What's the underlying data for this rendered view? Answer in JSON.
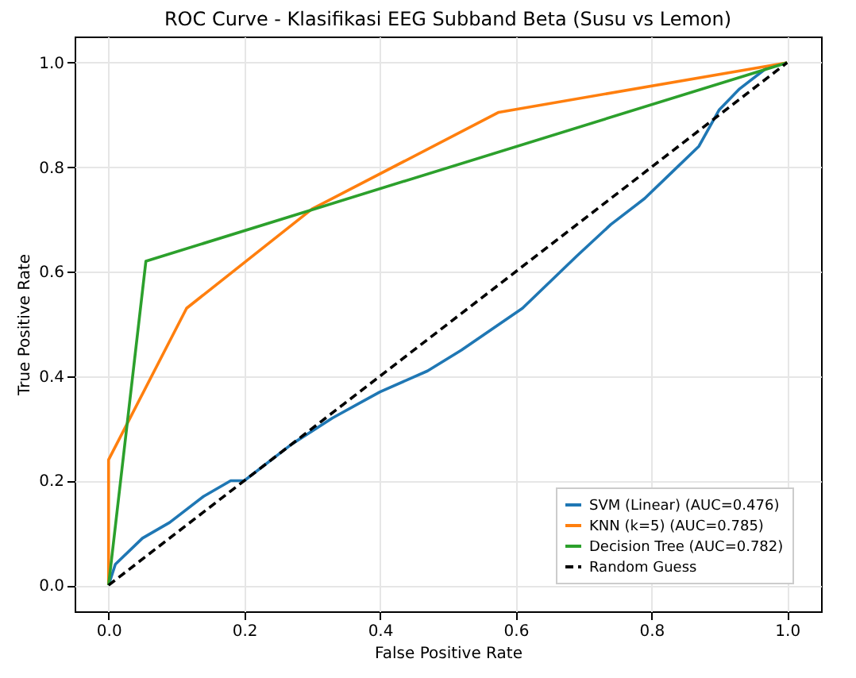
{
  "chart_data": {
    "type": "line",
    "title": "ROC Curve - Klasifikasi EEG Subband Beta (Susu vs Lemon)",
    "xlabel": "False Positive Rate",
    "ylabel": "True Positive Rate",
    "xlim": [
      -0.05,
      1.05
    ],
    "ylim": [
      -0.05,
      1.05
    ],
    "xticks": [
      {
        "value": 0,
        "label": "0.0"
      },
      {
        "value": 0.2,
        "label": "0.2"
      },
      {
        "value": 0.4,
        "label": "0.4"
      },
      {
        "value": 0.6,
        "label": "0.6"
      },
      {
        "value": 0.8,
        "label": "0.8"
      },
      {
        "value": 1,
        "label": "1.0"
      }
    ],
    "yticks": [
      {
        "value": 0,
        "label": "0.0"
      },
      {
        "value": 0.2,
        "label": "0.2"
      },
      {
        "value": 0.4,
        "label": "0.4"
      },
      {
        "value": 0.6,
        "label": "0.6"
      },
      {
        "value": 0.8,
        "label": "0.8"
      },
      {
        "value": 1,
        "label": "1.0"
      }
    ],
    "grid": true,
    "legend": "bottom right",
    "series": [
      {
        "name": "SVM (Linear) (AUC=0.476)",
        "color": "#1f77b4",
        "line_style": "solid",
        "x": [
          0,
          0.01,
          0.05,
          0.09,
          0.14,
          0.18,
          0.2,
          0.27,
          0.33,
          0.4,
          0.47,
          0.52,
          0.61,
          0.69,
          0.74,
          0.79,
          0.83,
          0.87,
          0.9,
          0.93,
          0.97,
          1
        ],
        "values": [
          0,
          0.04,
          0.09,
          0.12,
          0.17,
          0.2,
          0.2,
          0.27,
          0.32,
          0.37,
          0.41,
          0.45,
          0.53,
          0.63,
          0.69,
          0.74,
          0.79,
          0.84,
          0.91,
          0.95,
          0.99,
          1
        ]
      },
      {
        "name": "KNN (k=5) (AUC=0.785)",
        "color": "#ff7f0e",
        "line_style": "solid",
        "x": [
          0,
          0,
          0.115,
          0.3,
          0.575,
          1
        ],
        "values": [
          0,
          0.24,
          0.53,
          0.72,
          0.905,
          1
        ]
      },
      {
        "name": "Decision Tree (AUC=0.782)",
        "color": "#2ca02c",
        "line_style": "solid",
        "x": [
          0,
          0.055,
          1
        ],
        "values": [
          0,
          0.62,
          1
        ]
      },
      {
        "name": "Random Guess",
        "color": "#000000",
        "line_style": "dashed",
        "x": [
          0,
          1
        ],
        "values": [
          0,
          1
        ]
      }
    ]
  }
}
